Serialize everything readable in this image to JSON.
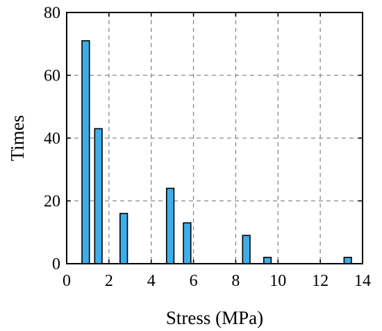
{
  "chart_data": {
    "type": "bar",
    "title": "",
    "xlabel": "Stress (MPa)",
    "ylabel": "Times",
    "xlim": [
      0,
      14
    ],
    "ylim": [
      0,
      80
    ],
    "xticks": [
      0,
      2,
      4,
      6,
      8,
      10,
      12,
      14
    ],
    "yticks": [
      0,
      20,
      40,
      60,
      80
    ],
    "grid": true,
    "bar_width": 0.35,
    "bar_color": "#3daee9",
    "x": [
      0.9,
      1.5,
      2.7,
      4.9,
      5.7,
      8.5,
      9.5,
      13.3
    ],
    "values": [
      71,
      43,
      16,
      24,
      13,
      9,
      2,
      2
    ]
  }
}
